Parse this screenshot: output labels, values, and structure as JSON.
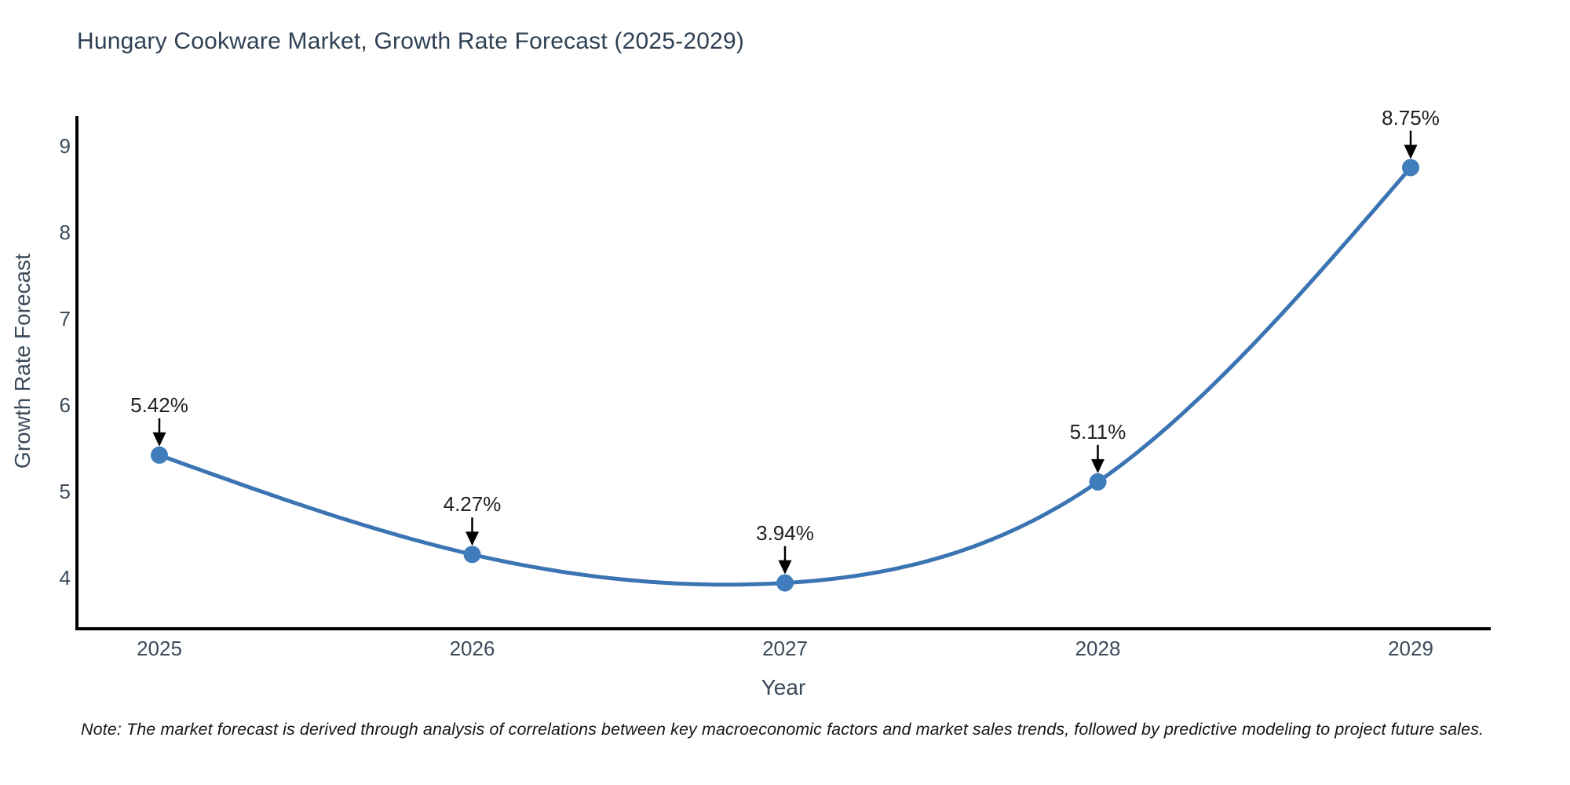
{
  "title": "Hungary Cookware Market, Growth Rate Forecast (2025-2029)",
  "note": "Note: The market forecast is derived through analysis of correlations between key macroeconomic factors and market sales trends, followed by predictive modeling to project future sales.",
  "chart_data": {
    "type": "line",
    "title": "Hungary Cookware Market, Growth Rate Forecast (2025-2029)",
    "xlabel": "Year",
    "ylabel": "Growth Rate Forecast",
    "x_tick_labels": [
      "2025",
      "2026",
      "2027",
      "2028",
      "2029"
    ],
    "x": [
      2025,
      2026,
      2027,
      2028,
      2029
    ],
    "values": [
      5.42,
      4.27,
      3.94,
      5.11,
      8.75
    ],
    "point_labels": [
      "5.42%",
      "4.27%",
      "3.94%",
      "5.11%",
      "8.75%"
    ],
    "y_ticks": [
      4,
      5,
      6,
      7,
      8,
      9
    ],
    "ylim": [
      3.4,
      9.35
    ],
    "line_shape": "spline",
    "grid": "off",
    "legend": "none",
    "annotation_style": "value label with downward black arrow to each point"
  },
  "colors": {
    "line": "#3b74b2",
    "marker": "#3f7dbd",
    "axis": "#000000",
    "arrow": "#000000",
    "title_text": "#2f4154",
    "tick_text": "#3b4a5a",
    "annotation_text": "#222222",
    "note_text": "#161616",
    "background": "#ffffff"
  }
}
